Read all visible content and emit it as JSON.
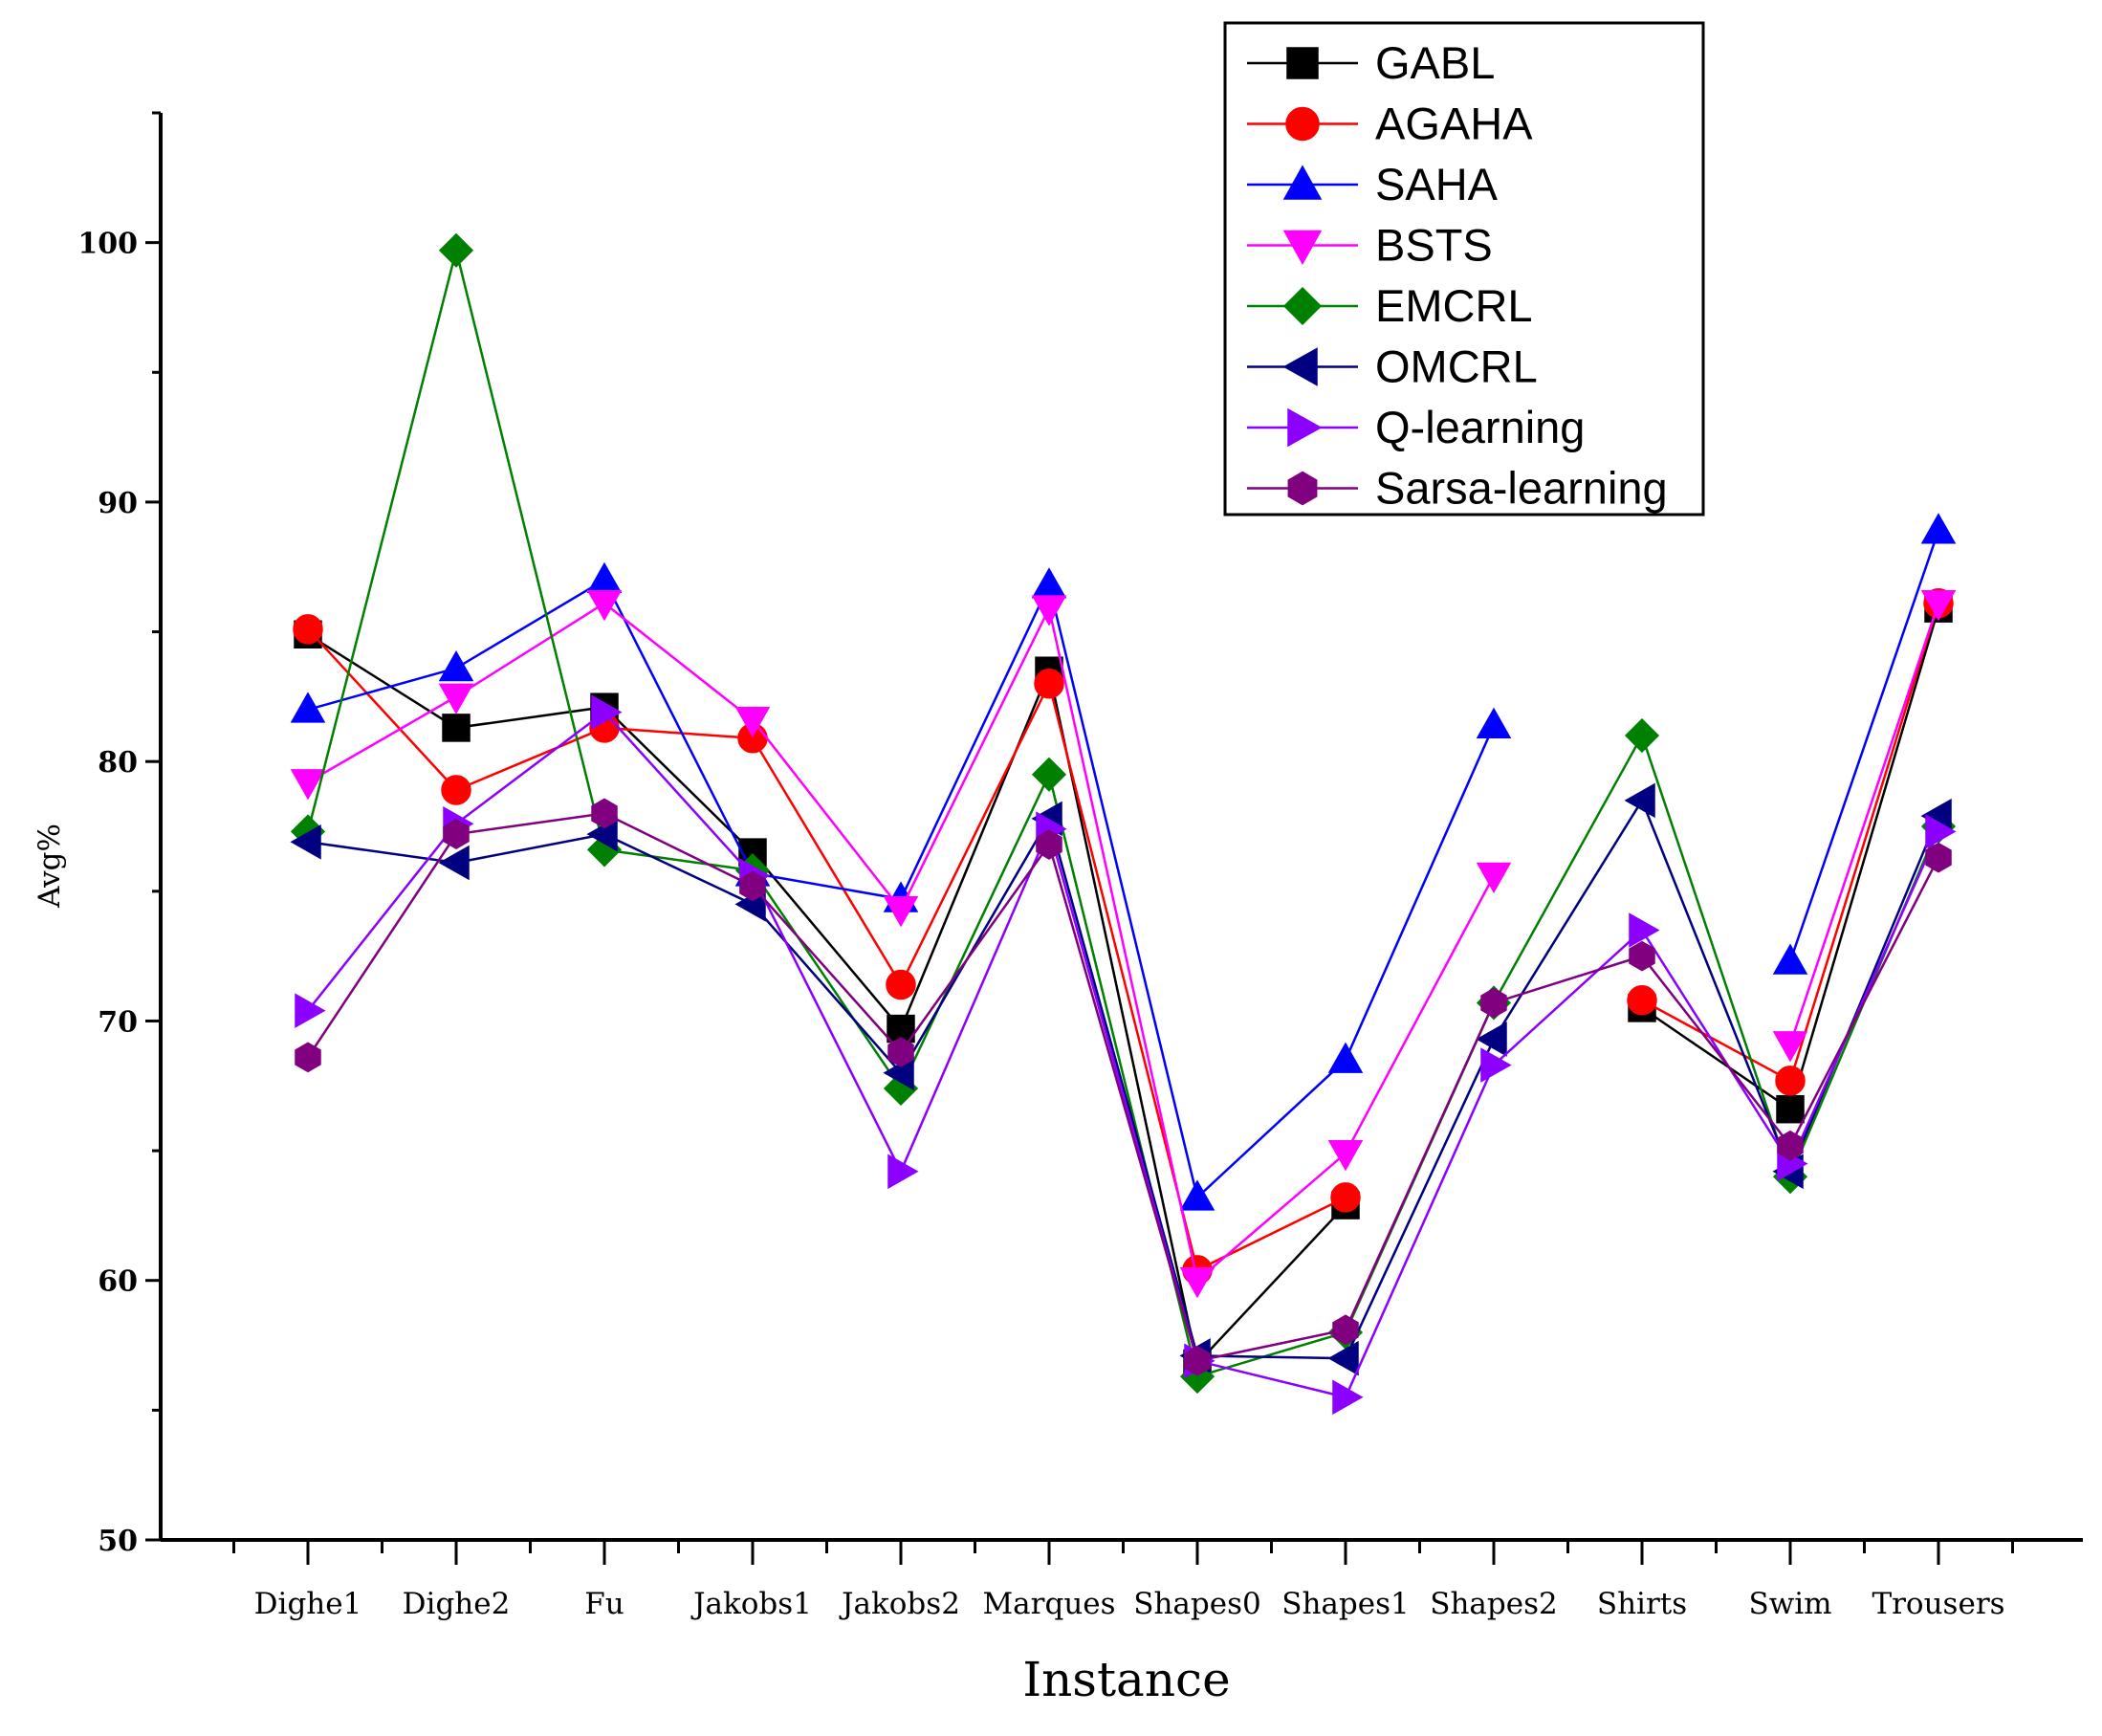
{
  "chart_data": {
    "type": "line",
    "title": "",
    "xlabel": "Instance",
    "ylabel": "Avg%",
    "ylim": [
      50,
      105
    ],
    "yticks": [
      50,
      60,
      70,
      80,
      90,
      100
    ],
    "grid": false,
    "legend_position": "top-right",
    "categories": [
      "Dighe1",
      "Dighe2",
      "Fu",
      "Jakobs1",
      "Jakobs2",
      "Marques",
      "Shapes0",
      "Shapes1",
      "Shapes2",
      "Shirts",
      "Swim",
      "Trousers"
    ],
    "series": [
      {
        "name": "GABL",
        "color": "#000000",
        "marker": "square",
        "values": [
          84.9,
          81.3,
          82.1,
          76.5,
          69.7,
          83.5,
          56.8,
          62.9,
          null,
          70.5,
          66.6,
          85.9
        ]
      },
      {
        "name": "AGAHA",
        "color": "#ff0000",
        "marker": "circle",
        "values": [
          85.1,
          78.9,
          81.3,
          80.9,
          71.4,
          83.0,
          60.4,
          63.2,
          null,
          70.8,
          67.7,
          86.1
        ]
      },
      {
        "name": "SAHA",
        "color": "#0000ff",
        "marker": "triangle-up",
        "values": [
          82.0,
          83.6,
          87.0,
          75.7,
          74.7,
          86.8,
          63.2,
          68.5,
          81.4,
          null,
          72.3,
          88.9
        ]
      },
      {
        "name": "BSTS",
        "color": "#ff00ff",
        "marker": "triangle-down",
        "values": [
          79.2,
          82.5,
          86.1,
          81.6,
          74.3,
          85.9,
          60.0,
          64.9,
          75.6,
          null,
          69.1,
          86.1
        ]
      },
      {
        "name": "EMCRL",
        "color": "#008000",
        "marker": "diamond",
        "values": [
          77.3,
          99.7,
          76.6,
          75.8,
          67.4,
          79.5,
          56.3,
          58.0,
          70.7,
          81.0,
          64.0,
          77.5
        ]
      },
      {
        "name": "OMCRL",
        "color": "#000080",
        "marker": "triangle-left",
        "values": [
          76.9,
          76.1,
          77.2,
          74.5,
          68.0,
          77.8,
          57.1,
          57.0,
          69.3,
          78.5,
          64.2,
          77.9
        ]
      },
      {
        "name": "Q-learning",
        "color": "#8b00ff",
        "marker": "triangle-right",
        "values": [
          70.4,
          77.6,
          81.9,
          75.6,
          64.2,
          77.4,
          56.9,
          55.5,
          68.3,
          73.5,
          64.5,
          77.3
        ]
      },
      {
        "name": "Sarsa-learning",
        "color": "#800080",
        "marker": "hexagon",
        "values": [
          68.6,
          77.2,
          78.0,
          75.2,
          68.8,
          76.8,
          56.9,
          58.1,
          70.7,
          72.5,
          65.2,
          76.3
        ]
      }
    ]
  }
}
